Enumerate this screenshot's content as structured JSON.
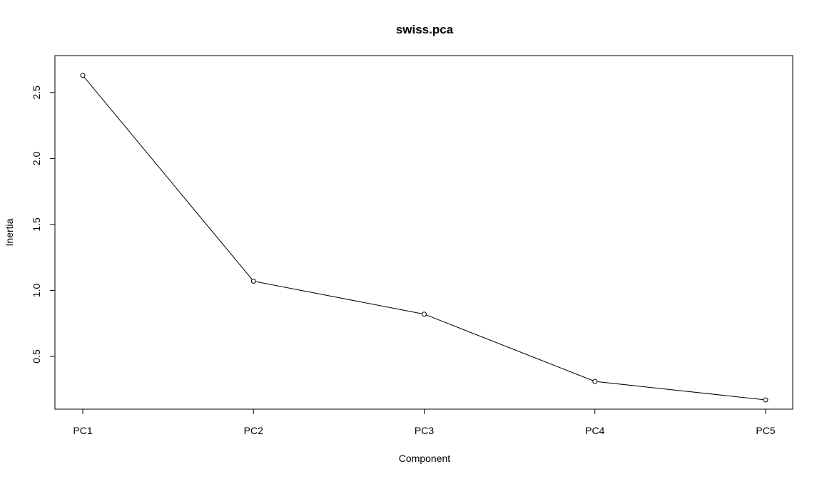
{
  "chart_data": {
    "type": "line",
    "title": "swiss.pca",
    "xlabel": "Component",
    "ylabel": "Inertia",
    "categories": [
      "PC1",
      "PC2",
      "PC3",
      "PC4",
      "PC5"
    ],
    "values": [
      2.63,
      1.07,
      0.82,
      0.31,
      0.17
    ],
    "ylim": [
      0.1,
      2.78
    ],
    "yticks": [
      "0.5",
      "1.0",
      "1.5",
      "2.0",
      "2.5"
    ],
    "markers": "open-circle",
    "grid": false,
    "legend": "none",
    "colors": {
      "line": "#000000",
      "marker": "#000000",
      "frame": "#000000"
    }
  }
}
